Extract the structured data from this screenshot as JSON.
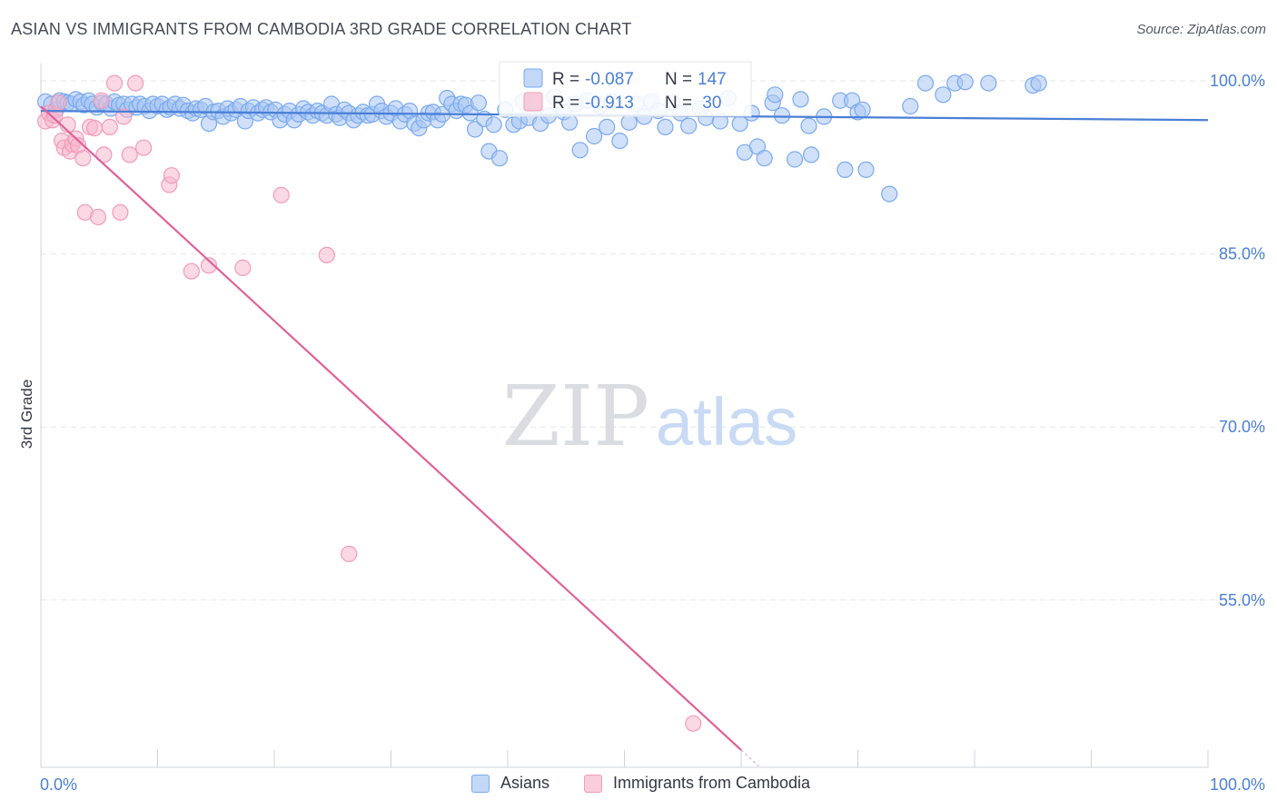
{
  "title": "ASIAN VS IMMIGRANTS FROM CAMBODIA 3RD GRADE CORRELATION CHART",
  "source": "Source: ZipAtlas.com",
  "watermark": {
    "zip": "ZIP",
    "atlas": "atlas"
  },
  "stats_legend": [
    {
      "r_label": "R =",
      "r_value": "-0.087",
      "n_label": "N =",
      "n_value": "147",
      "color": "#7aaaf0"
    },
    {
      "r_label": "R =",
      "r_value": "-0.913",
      "n_label": "N =",
      "n_value": " 30",
      "color": "#f29bb8"
    }
  ],
  "bottom_legend": [
    {
      "label": "Asians",
      "color": "#7aaaf0"
    },
    {
      "label": "Immigrants from Cambodia",
      "color": "#f29bb8"
    }
  ],
  "colors": {
    "blue": "#4a7fd6",
    "blue_fill": "#a9c6f2",
    "pink": "#e0609a",
    "pink_fill": "#f6b8cd",
    "axis_label": "#4b7fd6",
    "grid": "#e3e6ea"
  },
  "chart_data": {
    "type": "scatter",
    "title": "ASIAN VS IMMIGRANTS FROM CAMBODIA 3RD GRADE CORRELATION CHART",
    "xlabel": "",
    "ylabel": "3rd Grade",
    "xlim": [
      0,
      100
    ],
    "ylim": [
      40.5,
      101.5
    ],
    "x_tick_labels": [
      "0.0%",
      "100.0%"
    ],
    "y_ticks": [
      55,
      70,
      85,
      100
    ],
    "y_tick_labels": [
      "55.0%",
      "70.0%",
      "85.0%",
      "100.0%"
    ],
    "series": [
      {
        "name": "Asians",
        "trend": {
          "x": [
            0,
            100
          ],
          "y": [
            97.4,
            96.6
          ]
        },
        "points": [
          [
            0.4,
            98.2
          ],
          [
            0.9,
            98.0
          ],
          [
            1.3,
            97.5
          ],
          [
            1.6,
            98.3
          ],
          [
            2.0,
            98.2
          ],
          [
            2.3,
            98.1
          ],
          [
            2.6,
            98.0
          ],
          [
            3.0,
            98.4
          ],
          [
            3.4,
            98.2
          ],
          [
            3.7,
            97.9
          ],
          [
            4.1,
            98.3
          ],
          [
            4.4,
            98.0
          ],
          [
            4.8,
            97.7
          ],
          [
            5.2,
            98.1
          ],
          [
            5.6,
            98.0
          ],
          [
            6.0,
            97.6
          ],
          [
            6.3,
            98.2
          ],
          [
            6.7,
            97.9
          ],
          [
            7.1,
            98.0
          ],
          [
            7.4,
            97.5
          ],
          [
            7.8,
            98.0
          ],
          [
            8.2,
            97.7
          ],
          [
            8.5,
            98.0
          ],
          [
            8.9,
            97.8
          ],
          [
            9.3,
            97.4
          ],
          [
            9.6,
            98.0
          ],
          [
            10.0,
            97.8
          ],
          [
            10.4,
            98.0
          ],
          [
            10.8,
            97.5
          ],
          [
            11.1,
            97.7
          ],
          [
            11.5,
            98.0
          ],
          [
            11.9,
            97.6
          ],
          [
            12.2,
            97.9
          ],
          [
            12.6,
            97.4
          ],
          [
            13.0,
            97.2
          ],
          [
            13.3,
            97.6
          ],
          [
            13.7,
            97.5
          ],
          [
            14.1,
            97.8
          ],
          [
            14.4,
            96.3
          ],
          [
            14.8,
            97.3
          ],
          [
            15.2,
            97.4
          ],
          [
            15.6,
            96.9
          ],
          [
            16.0,
            97.6
          ],
          [
            16.3,
            97.2
          ],
          [
            16.7,
            97.5
          ],
          [
            17.1,
            97.8
          ],
          [
            17.5,
            96.5
          ],
          [
            17.8,
            97.4
          ],
          [
            18.2,
            97.7
          ],
          [
            18.6,
            97.2
          ],
          [
            19.0,
            97.5
          ],
          [
            19.3,
            97.7
          ],
          [
            19.7,
            97.3
          ],
          [
            20.1,
            97.5
          ],
          [
            20.5,
            96.6
          ],
          [
            20.9,
            97.1
          ],
          [
            21.3,
            97.4
          ],
          [
            21.7,
            96.6
          ],
          [
            22.1,
            97.1
          ],
          [
            22.5,
            97.6
          ],
          [
            22.9,
            97.3
          ],
          [
            23.3,
            97.0
          ],
          [
            23.7,
            97.4
          ],
          [
            24.1,
            97.2
          ],
          [
            24.5,
            97.0
          ],
          [
            24.9,
            98.0
          ],
          [
            25.3,
            97.1
          ],
          [
            25.6,
            96.8
          ],
          [
            26.0,
            97.5
          ],
          [
            26.4,
            97.2
          ],
          [
            26.8,
            96.6
          ],
          [
            27.2,
            97.0
          ],
          [
            27.6,
            97.3
          ],
          [
            28.0,
            97.0
          ],
          [
            28.4,
            97.1
          ],
          [
            28.8,
            98.0
          ],
          [
            29.2,
            97.4
          ],
          [
            29.6,
            96.9
          ],
          [
            30.0,
            97.2
          ],
          [
            30.4,
            97.6
          ],
          [
            30.8,
            96.5
          ],
          [
            31.2,
            97.1
          ],
          [
            31.6,
            97.4
          ],
          [
            32.0,
            96.3
          ],
          [
            32.4,
            95.9
          ],
          [
            32.8,
            96.6
          ],
          [
            33.2,
            97.2
          ],
          [
            33.6,
            97.3
          ],
          [
            34.0,
            96.6
          ],
          [
            34.4,
            97.1
          ],
          [
            34.8,
            98.5
          ],
          [
            35.2,
            98.0
          ],
          [
            35.6,
            97.4
          ],
          [
            36.0,
            98.0
          ],
          [
            36.4,
            97.9
          ],
          [
            36.8,
            97.2
          ],
          [
            37.2,
            95.8
          ],
          [
            37.5,
            98.1
          ],
          [
            38.0,
            96.7
          ],
          [
            38.4,
            93.9
          ],
          [
            38.8,
            96.2
          ],
          [
            39.3,
            93.3
          ],
          [
            39.8,
            97.5
          ],
          [
            40.5,
            96.2
          ],
          [
            41.0,
            96.5
          ],
          [
            41.3,
            98.2
          ],
          [
            41.8,
            96.8
          ],
          [
            42.3,
            98.1
          ],
          [
            42.8,
            96.3
          ],
          [
            43.5,
            97.0
          ],
          [
            44.0,
            98.6
          ],
          [
            44.8,
            97.3
          ],
          [
            45.3,
            96.4
          ],
          [
            45.8,
            98.0
          ],
          [
            46.2,
            94.0
          ],
          [
            46.8,
            98.3
          ],
          [
            47.4,
            95.2
          ],
          [
            47.9,
            97.8
          ],
          [
            48.5,
            96.0
          ],
          [
            48.9,
            98.2
          ],
          [
            49.6,
            94.8
          ],
          [
            50.4,
            96.4
          ],
          [
            51.0,
            98.0
          ],
          [
            51.7,
            96.9
          ],
          [
            52.3,
            98.2
          ],
          [
            52.9,
            97.4
          ],
          [
            53.5,
            96.0
          ],
          [
            54.1,
            98.1
          ],
          [
            54.8,
            97.2
          ],
          [
            55.5,
            96.1
          ],
          [
            56.5,
            97.6
          ],
          [
            57.0,
            96.8
          ],
          [
            58.2,
            96.5
          ],
          [
            58.9,
            98.5
          ],
          [
            59.9,
            96.3
          ],
          [
            60.3,
            93.8
          ],
          [
            60.9,
            97.2
          ],
          [
            61.4,
            94.3
          ],
          [
            62.0,
            93.3
          ],
          [
            62.7,
            98.1
          ],
          [
            62.9,
            98.8
          ],
          [
            63.5,
            97.0
          ],
          [
            64.6,
            93.2
          ],
          [
            65.1,
            98.4
          ],
          [
            65.8,
            96.1
          ],
          [
            66.0,
            93.6
          ],
          [
            67.1,
            96.9
          ],
          [
            68.5,
            98.3
          ],
          [
            68.9,
            92.3
          ],
          [
            69.5,
            98.3
          ],
          [
            70.0,
            97.3
          ],
          [
            70.4,
            97.5
          ],
          [
            70.7,
            92.3
          ],
          [
            72.7,
            90.2
          ],
          [
            74.5,
            97.8
          ],
          [
            75.8,
            99.8
          ],
          [
            77.3,
            98.8
          ],
          [
            78.3,
            99.8
          ],
          [
            79.2,
            99.9
          ],
          [
            81.2,
            99.8
          ],
          [
            85.0,
            99.6
          ],
          [
            85.5,
            99.8
          ]
        ]
      },
      {
        "name": "Immigrants from Cambodia",
        "trend": {
          "x": [
            0,
            60
          ],
          "y": [
            97.8,
            42.0
          ]
        },
        "points": [
          [
            0.4,
            96.5
          ],
          [
            0.7,
            97.2
          ],
          [
            1.0,
            96.6
          ],
          [
            1.2,
            97.0
          ],
          [
            1.5,
            98.1
          ],
          [
            1.8,
            94.8
          ],
          [
            2.0,
            94.2
          ],
          [
            2.3,
            96.2
          ],
          [
            2.5,
            93.9
          ],
          [
            2.7,
            94.5
          ],
          [
            3.0,
            95.0
          ],
          [
            3.2,
            94.4
          ],
          [
            3.6,
            93.3
          ],
          [
            3.8,
            88.6
          ],
          [
            4.2,
            96.0
          ],
          [
            4.6,
            95.9
          ],
          [
            4.9,
            88.2
          ],
          [
            5.2,
            98.3
          ],
          [
            5.4,
            93.6
          ],
          [
            5.9,
            96.0
          ],
          [
            6.3,
            99.8
          ],
          [
            6.8,
            88.6
          ],
          [
            7.1,
            96.9
          ],
          [
            7.6,
            93.6
          ],
          [
            8.1,
            99.8
          ],
          [
            8.8,
            94.2
          ],
          [
            11.0,
            91.0
          ],
          [
            11.2,
            91.8
          ],
          [
            12.9,
            83.5
          ],
          [
            14.4,
            84.0
          ],
          [
            17.3,
            83.8
          ],
          [
            20.6,
            90.1
          ],
          [
            24.5,
            84.9
          ],
          [
            26.4,
            59.0
          ],
          [
            55.9,
            44.3
          ]
        ]
      }
    ]
  }
}
